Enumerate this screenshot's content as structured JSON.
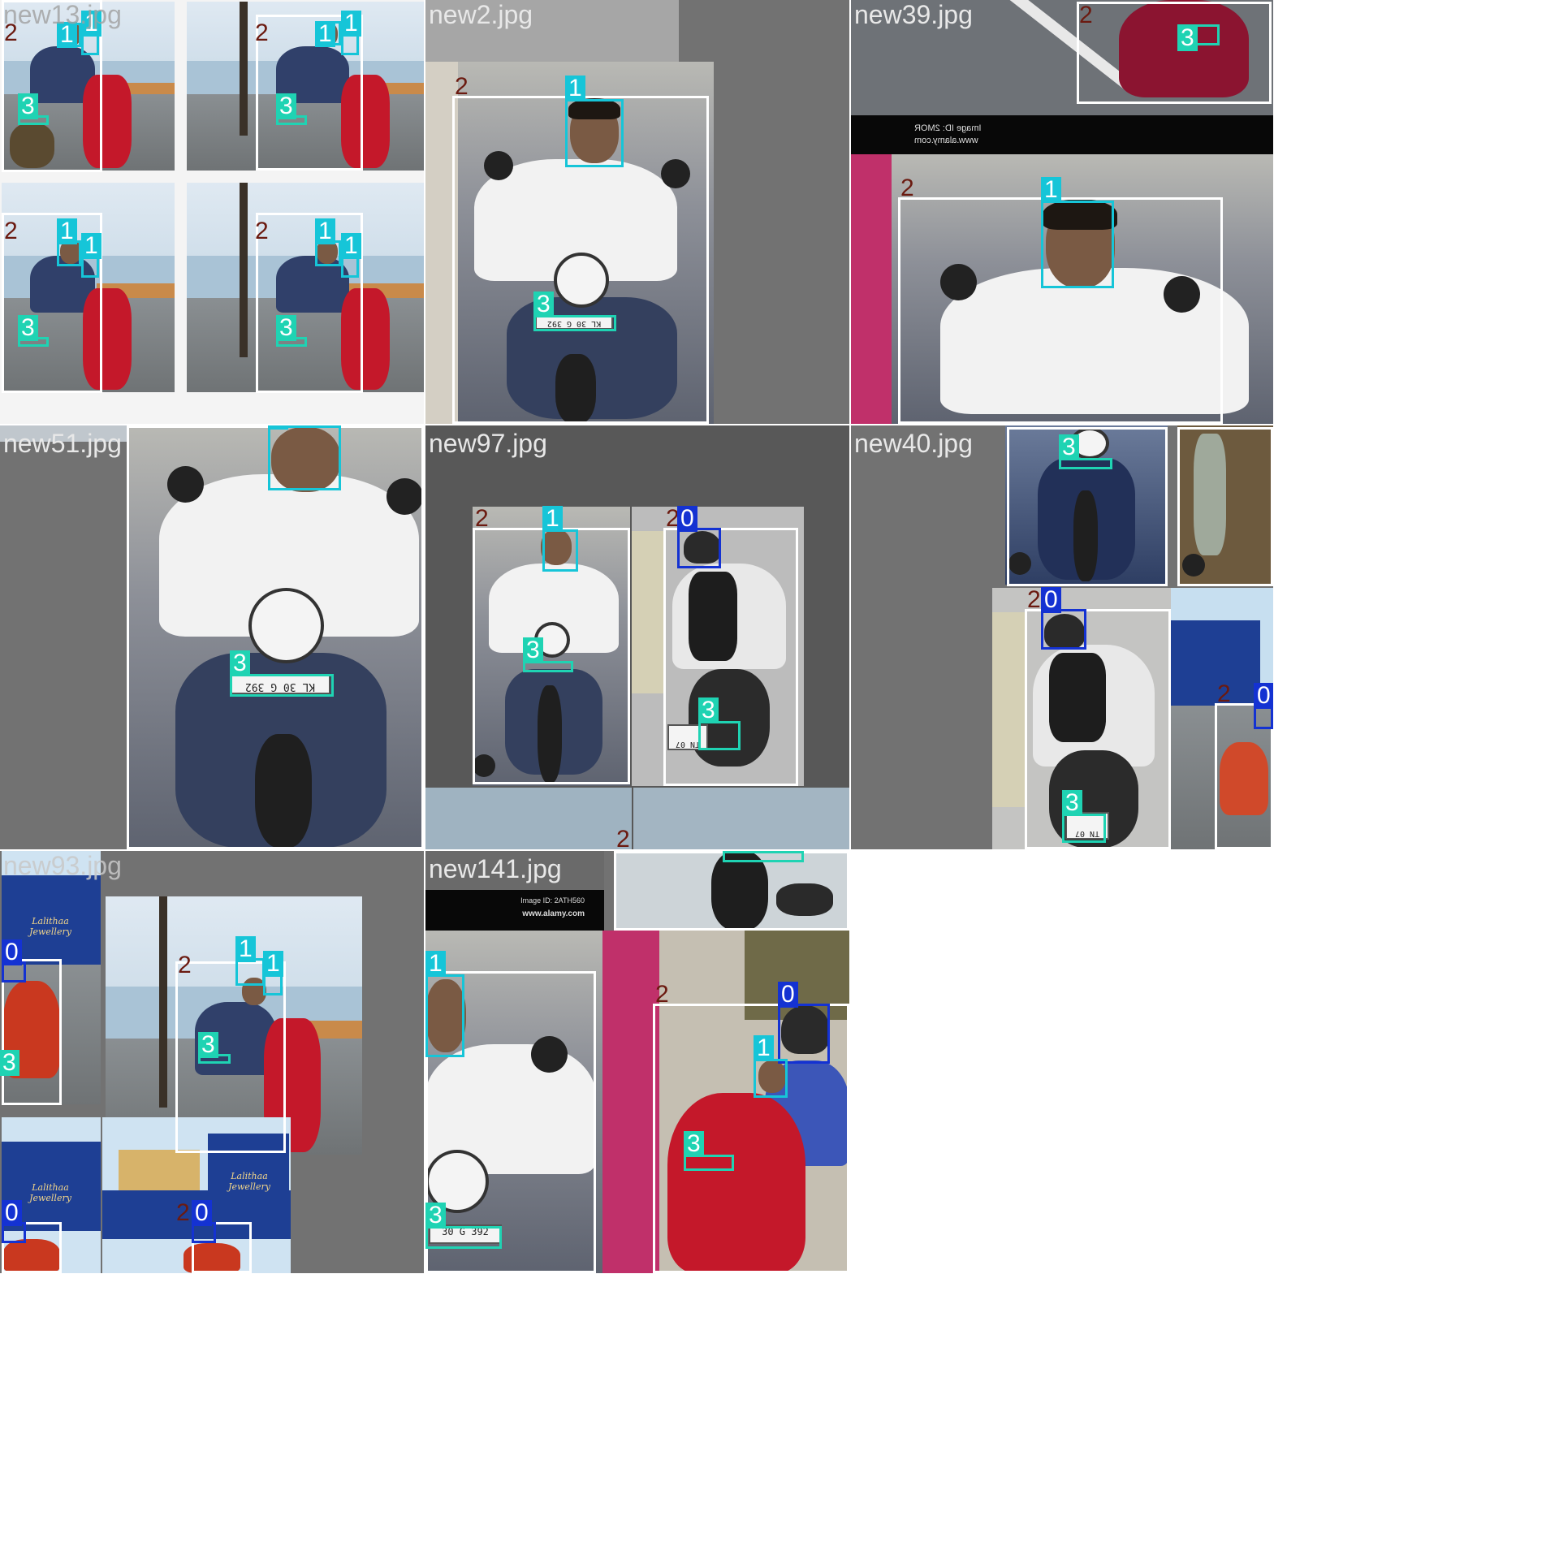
{
  "mosaic": {
    "background": "#727272",
    "class_colors": {
      "0": "#1432d2",
      "1": "#16c5d8",
      "2": "#ffffff",
      "3": "#1fd3b3"
    },
    "tiles": [
      {
        "filename": "new13.jpg"
      },
      {
        "filename": "new2.jpg"
      },
      {
        "filename": "new39.jpg"
      },
      {
        "filename": "new51.jpg"
      },
      {
        "filename": "new97.jpg"
      },
      {
        "filename": "new40.jpg"
      },
      {
        "filename": "new93.jpg"
      },
      {
        "filename": "new141.jpg"
      }
    ],
    "box_labels": {
      "c0": "0",
      "c1": "1",
      "c2": "2",
      "c3": "3"
    },
    "plate_texts": {
      "kl": "KL 30 G 392",
      "short": "30 G 392",
      "tn": "TN 07"
    },
    "watermarks": {
      "alamy_url": "www.alamy.com",
      "image_id": "Image ID: 2ATH560",
      "mirrored_id": "Image ID: 2MOR",
      "mirrored_url": "www.alamy.com",
      "shop_name": "Lalithaa Jewellery"
    }
  }
}
